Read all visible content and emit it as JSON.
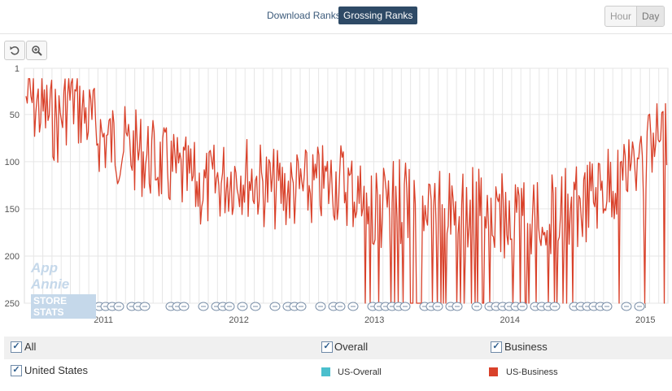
{
  "header": {
    "tabs": [
      {
        "label": "Download Ranks",
        "active": false
      },
      {
        "label": "Grossing Ranks",
        "active": true
      }
    ],
    "granularity": {
      "options": [
        "Hour",
        "Day"
      ],
      "selected": "Day"
    }
  },
  "watermark": {
    "line1": "App Annie",
    "line2": "STORE STATS"
  },
  "chart_data": {
    "type": "line",
    "y_axis": {
      "reversed": true,
      "ticks": [
        1,
        50,
        100,
        150,
        200,
        250
      ],
      "range": [
        1,
        250
      ]
    },
    "x_axis": {
      "ticks": [
        "2011",
        "2012",
        "2013",
        "2014",
        "2015"
      ],
      "range": [
        "2010-06",
        "2015-03"
      ]
    },
    "grid": true,
    "series": [
      {
        "name": "US-Business",
        "color": "#d9412a",
        "keypoints": [
          {
            "x": "2010-06",
            "y": 30
          },
          {
            "x": "2010-09",
            "y": 60
          },
          {
            "x": "2010-10",
            "y": 30
          },
          {
            "x": "2011-01",
            "y": 75
          },
          {
            "x": "2011-04",
            "y": 90
          },
          {
            "x": "2011-07",
            "y": 110
          },
          {
            "x": "2011-10",
            "y": 130
          },
          {
            "x": "2012-01",
            "y": 110
          },
          {
            "x": "2012-04",
            "y": 130
          },
          {
            "x": "2012-07",
            "y": 130
          },
          {
            "x": "2012-10",
            "y": 120
          },
          {
            "x": "2013-01",
            "y": 150
          },
          {
            "x": "2013-04",
            "y": 140
          },
          {
            "x": "2013-07",
            "y": 150
          },
          {
            "x": "2013-10",
            "y": 150
          },
          {
            "x": "2014-01",
            "y": 160
          },
          {
            "x": "2014-04",
            "y": 155
          },
          {
            "x": "2014-07",
            "y": 150
          },
          {
            "x": "2014-10",
            "y": 120
          },
          {
            "x": "2015-01",
            "y": 100
          },
          {
            "x": "2015-03",
            "y": 60
          }
        ]
      },
      {
        "name": "US-Overall",
        "color": "#4bbfcd",
        "keypoints": []
      }
    ]
  },
  "legend": {
    "row1": [
      {
        "label": "All",
        "checked": true
      },
      {
        "label": "Overall",
        "checked": true
      },
      {
        "label": "Business",
        "checked": true
      }
    ],
    "row2": {
      "country": {
        "label": "United States",
        "checked": true
      },
      "series": [
        {
          "label": "US-Overall",
          "color": "#4bbfcd"
        },
        {
          "label": "US-Business",
          "color": "#d9412a"
        }
      ]
    }
  }
}
